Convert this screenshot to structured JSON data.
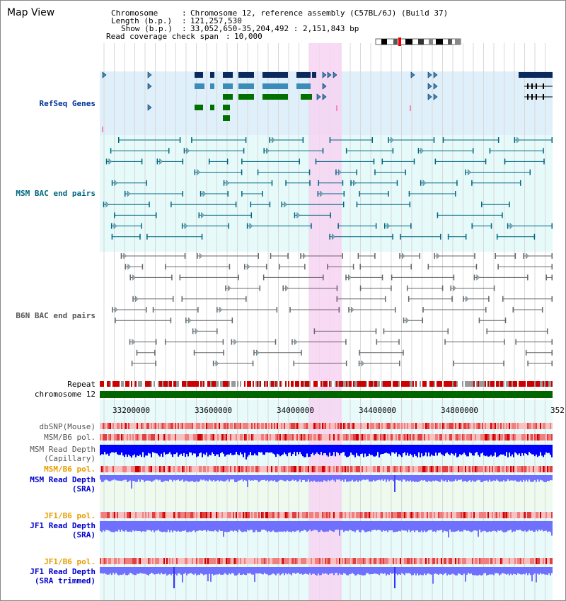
{
  "title": "Map View",
  "info": {
    "chromosome_label": "Chromosome",
    "chromosome_value": "Chromosome 12, reference assembly (C57BL/6J) (Build 37)",
    "length_label": "Length (b.p.)",
    "length_value": "121,257,530",
    "show_label": "Show (b.p.)",
    "show_value": "33,052,650-35,204,492 : 2,151,843 bp",
    "span_label": "Read coverage check span",
    "span_value": "10,000"
  },
  "tracks": {
    "refseq": "RefSeq Genes",
    "msm_bac": "MSM BAC end pairs",
    "b6n_bac": "B6N BAC end pairs",
    "repeat": "Repeat",
    "chromosome": "chromosome 12",
    "dbsnp": "dbSNP(Mouse)",
    "msm_b6_pol_1": "MSM/B6 pol.",
    "msm_depth_cap_1": "MSM Read Depth",
    "msm_depth_cap_2": "(Capillary)",
    "msm_b6_pol_2": "MSM/B6 pol.",
    "msm_depth_sra_1": "MSM Read Depth",
    "msm_depth_sra_2": "(SRA)",
    "jf1_b6_pol_1": "JF1/B6 pol.",
    "jf1_depth_sra_1": "JF1 Read Depth",
    "jf1_depth_sra_2": "(SRA)",
    "jf1_b6_pol_2": "JF1/B6 pol.",
    "jf1_depth_trim_1": "JF1 Read Depth",
    "jf1_depth_trim_2": "(SRA trimmed)"
  },
  "axis": {
    "ticks": [
      "33200000",
      "33600000",
      "34000000",
      "34400000",
      "34800000",
      "352"
    ]
  },
  "colors": {
    "refseq_bg": "#dff0fa",
    "bac_bg": "#e6fafa",
    "highlight": "#f7d4f2",
    "gene_dark": "#0a2a5e",
    "gene_mid": "#3b8cb8",
    "gene_green": "#007000",
    "msm_line": "#006680",
    "b6n_line": "#666666",
    "chromosome_bar": "#006600",
    "repeat": "#cc0000",
    "depth_cap": "#0000ff",
    "depth_sra": "#7070ff"
  }
}
